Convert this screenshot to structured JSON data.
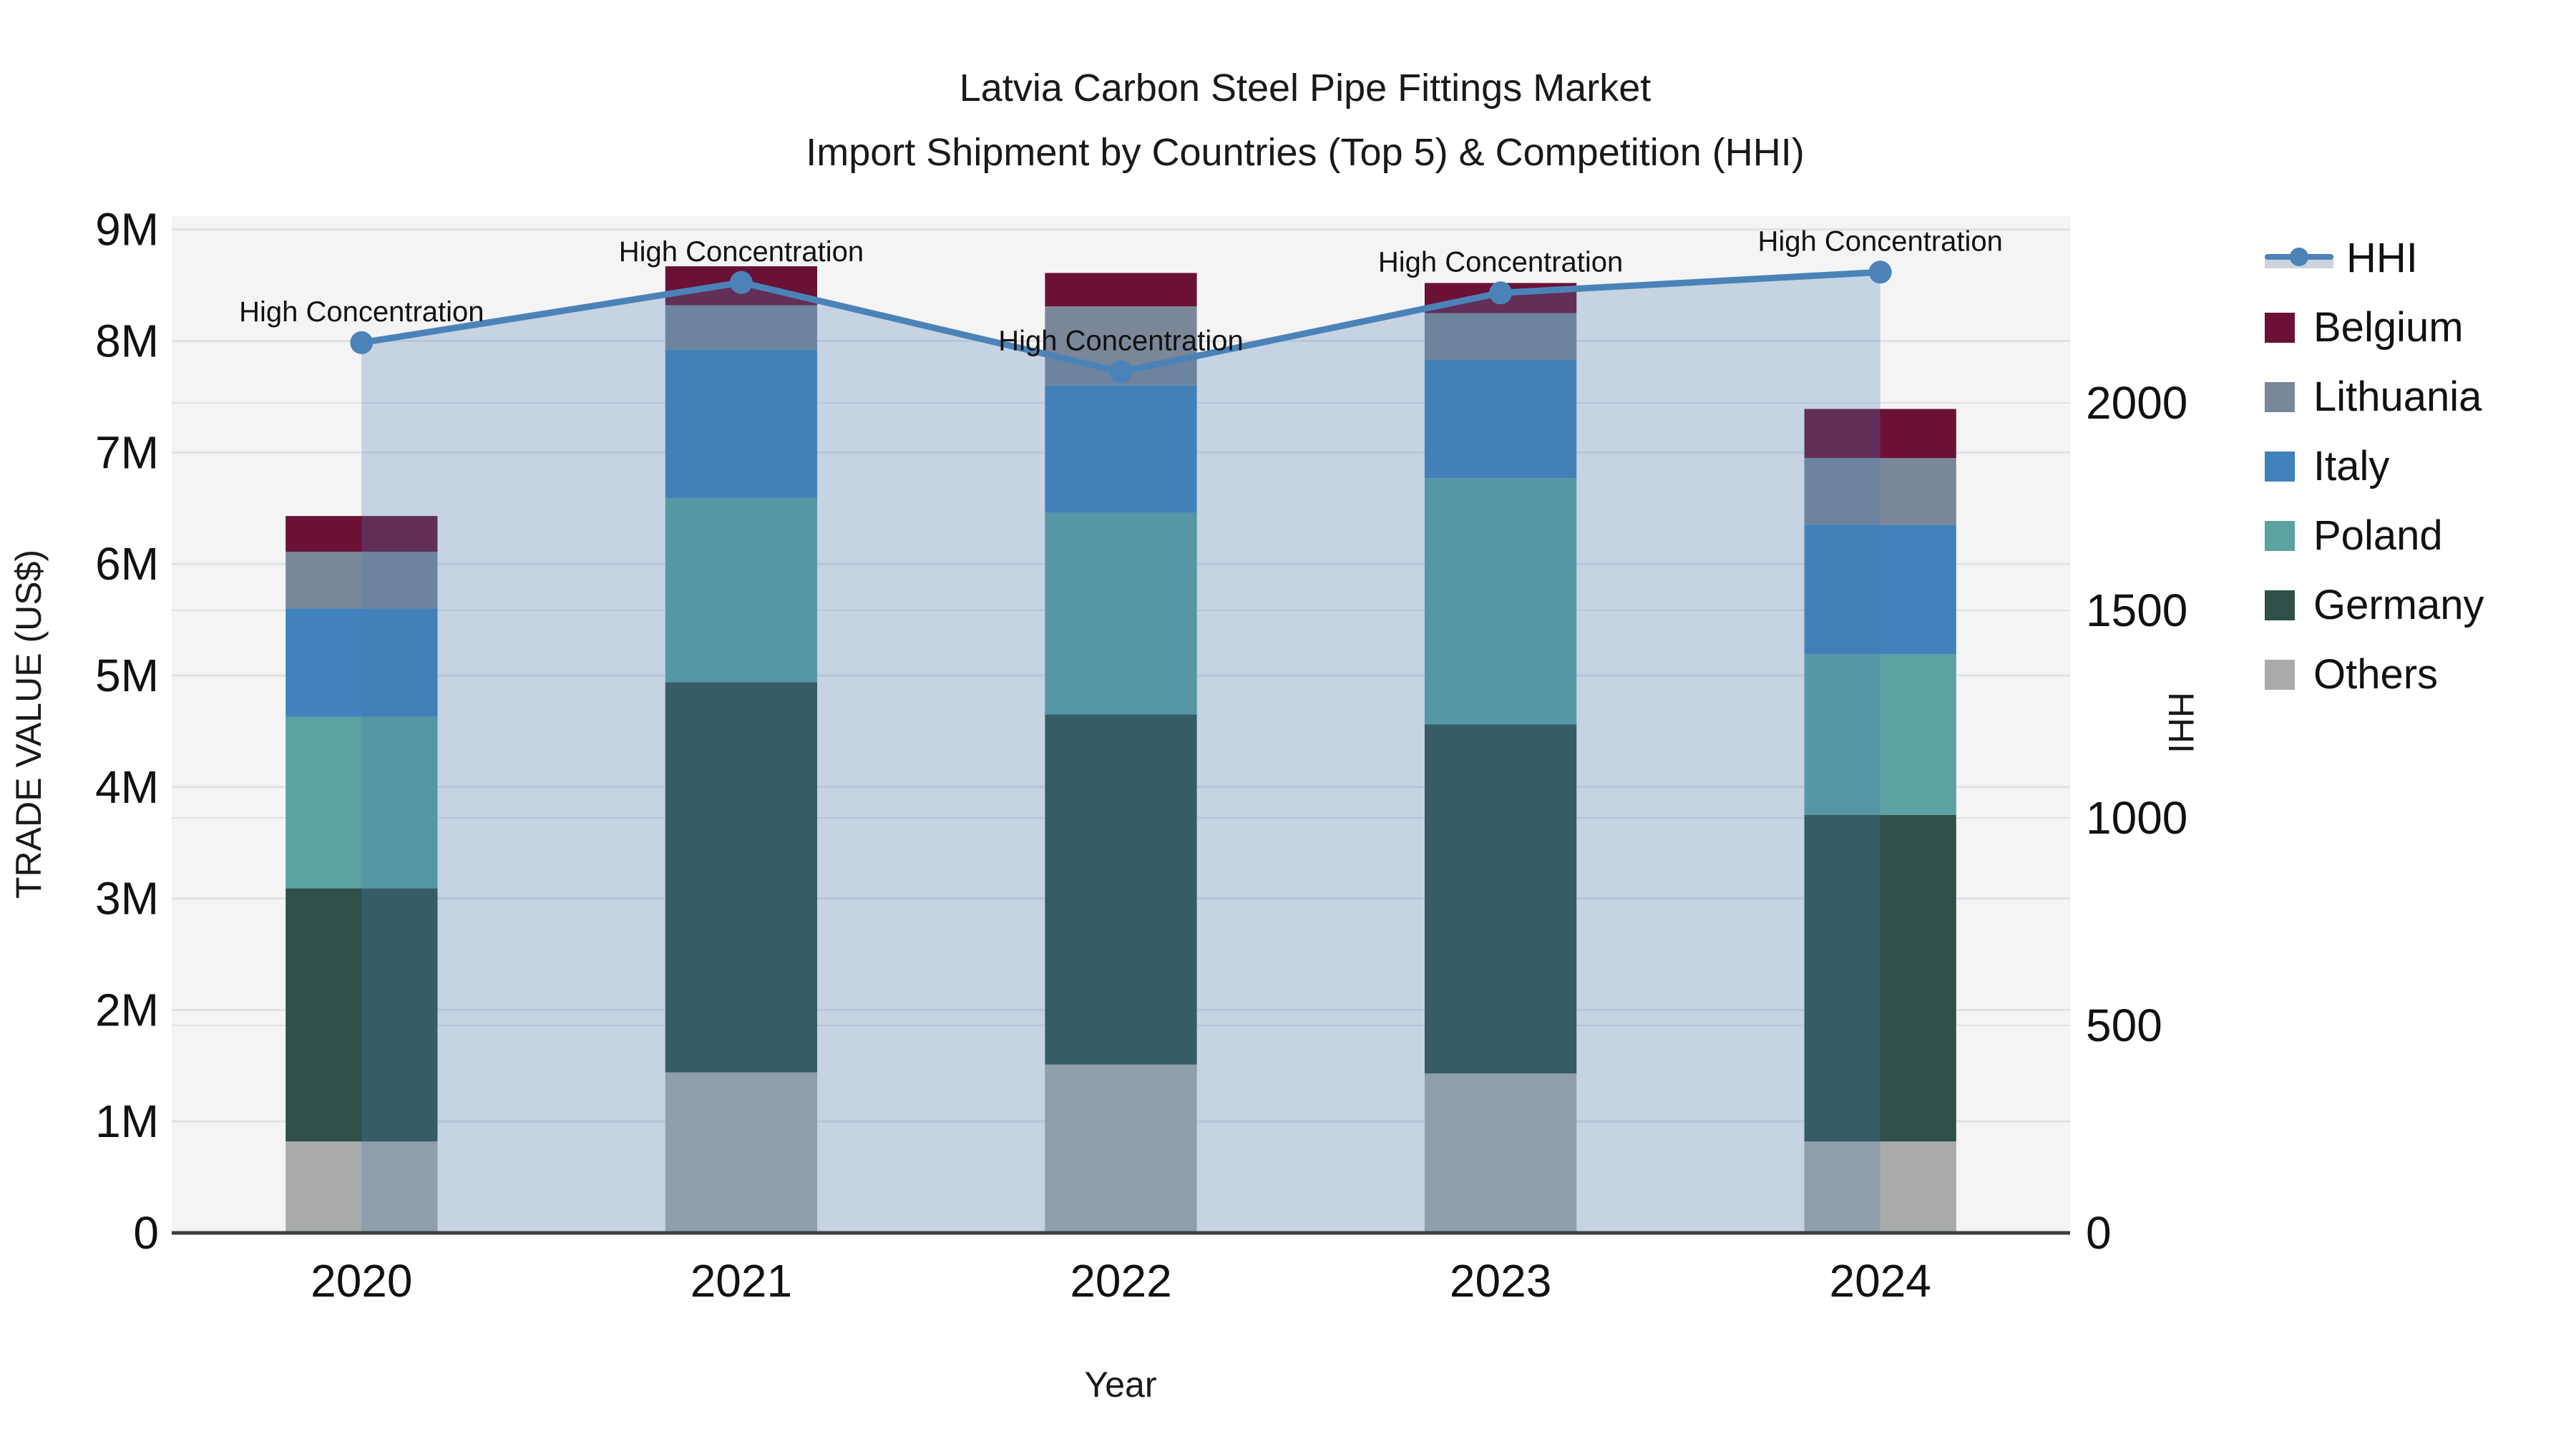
{
  "chart_data": {
    "type": "bar",
    "subtype": "stacked-bar-with-line",
    "title": "Latvia Carbon Steel Pipe Fittings Market",
    "subtitle": "Import Shipment by Countries (Top 5) & Competition (HHI)",
    "xlabel": "Year",
    "ylabel_left": "TRADE VALUE (US$)",
    "ylabel_right": "HHI",
    "categories": [
      "2020",
      "2021",
      "2022",
      "2023",
      "2024"
    ],
    "values_unit": "million US$",
    "series": [
      {
        "name": "Others",
        "color": "#a9abaa",
        "values": [
          0.82,
          1.44,
          1.51,
          1.43,
          0.82
        ]
      },
      {
        "name": "Germany",
        "color": "#2f4f49",
        "values": [
          2.27,
          3.5,
          3.14,
          3.13,
          2.93
        ]
      },
      {
        "name": "Poland",
        "color": "#5ba1a2",
        "values": [
          1.54,
          1.65,
          1.81,
          2.21,
          1.44
        ]
      },
      {
        "name": "Italy",
        "color": "#4181bc",
        "values": [
          0.97,
          1.33,
          1.14,
          1.06,
          1.16
        ]
      },
      {
        "name": "Lithuania",
        "color": "#7a8799",
        "values": [
          0.51,
          0.4,
          0.71,
          0.42,
          0.6
        ]
      },
      {
        "name": "Belgium",
        "color": "#6a1135",
        "values": [
          0.32,
          0.35,
          0.3,
          0.27,
          0.44
        ]
      }
    ],
    "stack_totals": [
      6.43,
      8.67,
      8.61,
      8.52,
      7.39
    ],
    "line_series": {
      "name": "HHI",
      "values": [
        2145,
        2290,
        2075,
        2265,
        2315
      ],
      "color": "#4b83b8",
      "area_fill": "rgba(75,125,175,0.28)",
      "axis": "right"
    },
    "annotations": [
      "High Concentration",
      "High Concentration",
      "High Concentration",
      "High Concentration",
      "High Concentration"
    ],
    "left_ticks": [
      {
        "label": "0",
        "value": 0
      },
      {
        "label": "1M",
        "value": 1
      },
      {
        "label": "2M",
        "value": 2
      },
      {
        "label": "3M",
        "value": 3
      },
      {
        "label": "4M",
        "value": 4
      },
      {
        "label": "5M",
        "value": 5
      },
      {
        "label": "6M",
        "value": 6
      },
      {
        "label": "7M",
        "value": 7
      },
      {
        "label": "8M",
        "value": 8
      },
      {
        "label": "9M",
        "value": 9
      }
    ],
    "right_ticks": [
      {
        "label": "0",
        "value": 0
      },
      {
        "label": "500",
        "value": 500
      },
      {
        "label": "1000",
        "value": 1000
      },
      {
        "label": "1500",
        "value": 1500
      },
      {
        "label": "2000",
        "value": 2000
      }
    ],
    "ylim_left": [
      0,
      9.12
    ],
    "ylim_right": [
      0,
      2450
    ],
    "grid": true,
    "plot_bg": "#f4f4f5",
    "grid_color": "#e1e2e6",
    "axis_line_color": "#3a3f42",
    "legend_position": "right",
    "legend_order": [
      "HHI",
      "Belgium",
      "Lithuania",
      "Italy",
      "Poland",
      "Germany",
      "Others"
    ]
  }
}
